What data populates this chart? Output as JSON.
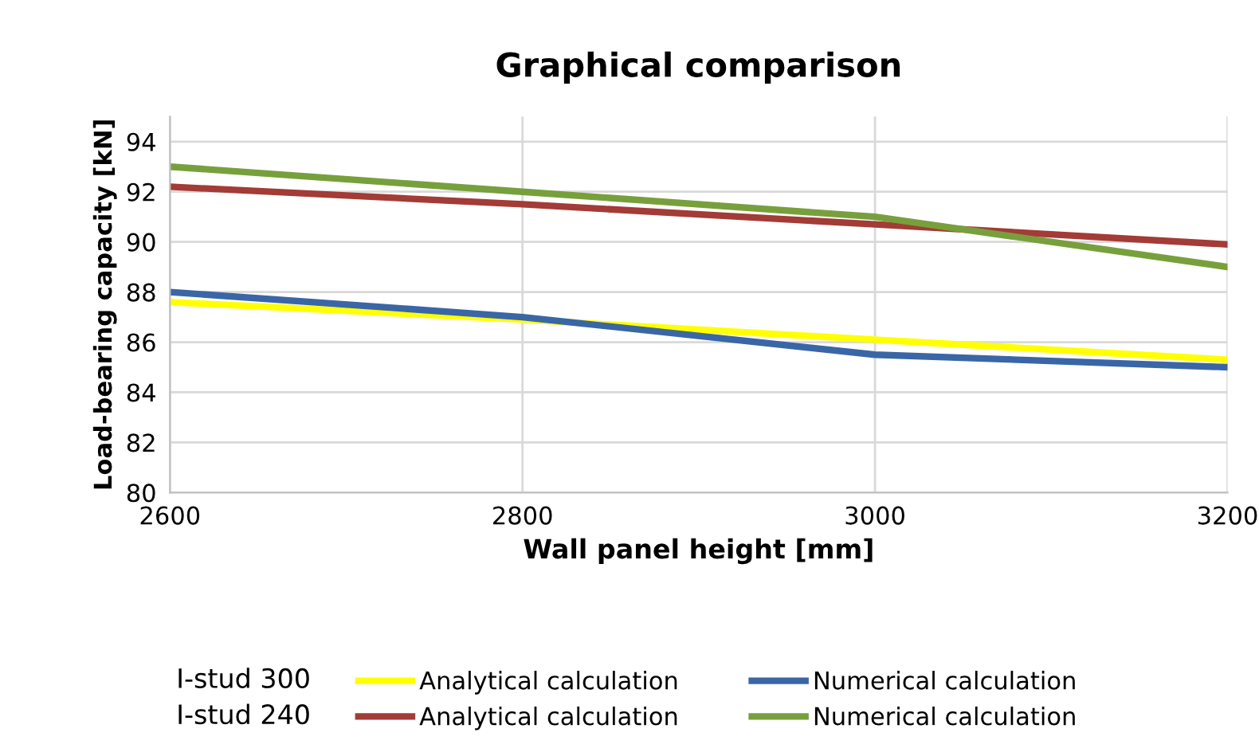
{
  "chart_data": {
    "type": "line",
    "title": "Graphical comparison",
    "xlabel": "Wall panel height [mm]",
    "ylabel": "Load-bearing capacity [kN]",
    "x": [
      2600,
      2800,
      3000,
      3200
    ],
    "series": [
      {
        "name": "Analytical calculation",
        "color": "#ffff00",
        "values": [
          87.6,
          86.9,
          86.1,
          85.3
        ]
      },
      {
        "name": "Numerical calculation",
        "color": "#3a66a6",
        "values": [
          88.0,
          87.0,
          85.5,
          85.0
        ]
      },
      {
        "name": "Analytical calculation",
        "color": "#a33b36",
        "values": [
          92.2,
          91.5,
          90.7,
          89.9
        ]
      },
      {
        "name": "Numerical calculation",
        "color": "#77a03c",
        "values": [
          93.0,
          92.0,
          91.0,
          89.0
        ]
      }
    ],
    "annotations": [
      "I-stud 300",
      "I-stud 240"
    ],
    "xlim": [
      2600,
      3200
    ],
    "xticks": [
      2600,
      2800,
      3000,
      3200
    ],
    "ylim": [
      80,
      95
    ],
    "yticks": [
      80,
      82,
      84,
      86,
      88,
      90,
      92,
      94
    ],
    "grid": true,
    "legend": "bottom",
    "marker": "none",
    "line_style": "solid"
  }
}
